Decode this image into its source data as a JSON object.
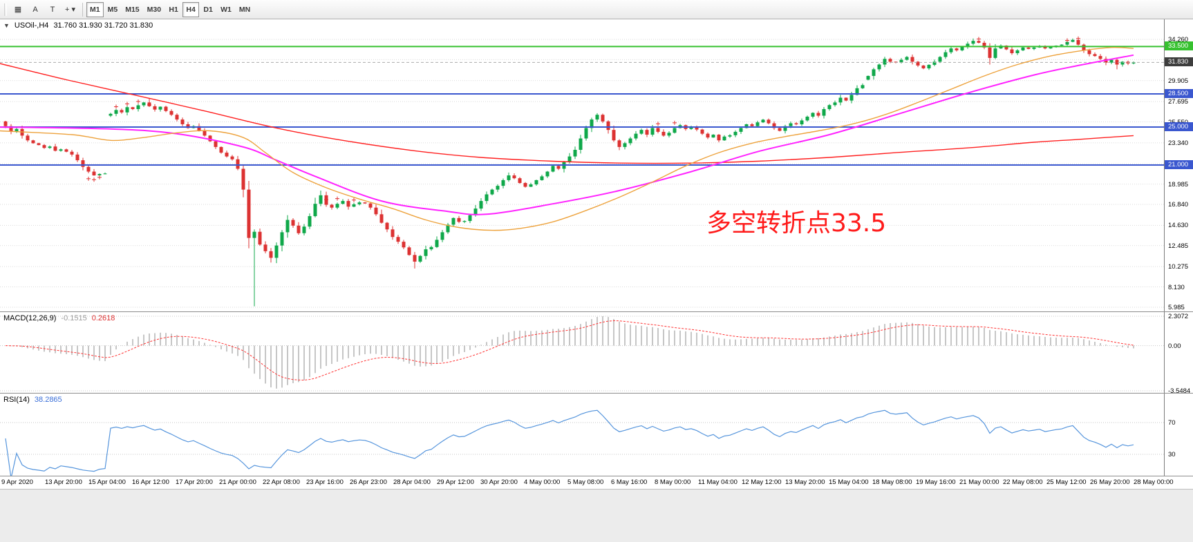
{
  "toolbar": {
    "tools": [
      {
        "name": "chart-grid",
        "glyph": "▦"
      },
      {
        "name": "arrow-tool",
        "glyph": "A"
      },
      {
        "name": "text-tool",
        "glyph": "T"
      },
      {
        "name": "cursor-dropdown",
        "glyph": "+",
        "caret": "▾"
      }
    ],
    "timeframes": [
      "M1",
      "M5",
      "M15",
      "M30",
      "H1",
      "H4",
      "D1",
      "W1",
      "MN"
    ],
    "pressed": [
      "M1",
      "H4"
    ]
  },
  "main_panel": {
    "dropdown_glyph": "▼",
    "title": "USOil-,H4",
    "ohlc": "31.760 31.930 31.720 31.830",
    "annotation": {
      "text": "多空转折点33.5",
      "color": "#ff1a1a"
    }
  },
  "macd_panel": {
    "label": "MACD(12,26,9)",
    "value_main": "-0.1515",
    "value_signal": "0.2618"
  },
  "rsi_panel": {
    "label": "RSI(14)",
    "value": "38.2865"
  },
  "chart_data": {
    "type": "candlestick",
    "symbol": "USOil-",
    "timeframe": "H4",
    "ohlc_current": {
      "open": 31.76,
      "high": 31.93,
      "low": 31.72,
      "close": 31.83
    },
    "x_axis": {
      "labels": [
        "9 Apr 2020",
        "13 Apr 20:00",
        "15 Apr 04:00",
        "16 Apr 12:00",
        "17 Apr 20:00",
        "21 Apr 00:00",
        "22 Apr 08:00",
        "23 Apr 16:00",
        "26 Apr 23:00",
        "28 Apr 04:00",
        "29 Apr 12:00",
        "30 Apr 20:00",
        "4 May 00:00",
        "5 May 08:00",
        "6 May 16:00",
        "8 May 00:00",
        "11 May 04:00",
        "12 May 12:00",
        "13 May 20:00",
        "15 May 04:00",
        "18 May 08:00",
        "19 May 16:00",
        "21 May 00:00",
        "22 May 08:00",
        "25 May 12:00",
        "26 May 20:00",
        "28 May 00:00"
      ]
    },
    "y_axis": {
      "tick_labels": [
        "34.260",
        "29.905",
        "27.695",
        "25.550",
        "23.340",
        "18.985",
        "16.840",
        "14.630",
        "12.485",
        "10.275",
        "8.130",
        "5.985"
      ],
      "grid_values": [
        34.26,
        32.115,
        29.905,
        27.695,
        25.55,
        23.34,
        21.13,
        18.985,
        16.84,
        14.63,
        12.485,
        10.275,
        8.13,
        5.985
      ],
      "range": [
        5.985,
        34.26
      ]
    },
    "badges": [
      {
        "text": "33.500",
        "value": 33.5,
        "type": "green"
      },
      {
        "text": "31.830",
        "value": 31.83,
        "type": "price"
      },
      {
        "text": "28.500",
        "value": 28.5,
        "type": "blue"
      },
      {
        "text": "25.000",
        "value": 25.0,
        "type": "blue"
      },
      {
        "text": "21.000",
        "value": 21.0,
        "type": "blue"
      }
    ],
    "closes": [
      25.1,
      24.55,
      24.8,
      24.1,
      23.6,
      23.3,
      23.1,
      22.8,
      22.95,
      22.5,
      22.65,
      22.4,
      22.1,
      21.5,
      20.8,
      20.3,
      19.9,
      20.05,
      20.1,
      26.4,
      26.8,
      26.55,
      27.1,
      26.9,
      27.3,
      27.6,
      27.2,
      26.85,
      27.15,
      26.7,
      26.3,
      25.8,
      25.3,
      24.9,
      25.1,
      24.6,
      24.1,
      23.5,
      22.9,
      22.3,
      21.9,
      21.6,
      20.6,
      18.4,
      13.3,
      13.95,
      12.6,
      11.9,
      11.2,
      12.5,
      13.9,
      15.2,
      14.6,
      13.8,
      14.5,
      15.6,
      16.9,
      17.8,
      16.8,
      16.5,
      16.9,
      17.2,
      16.6,
      16.85,
      17.05,
      16.94,
      16.5,
      15.8,
      14.9,
      14.2,
      13.4,
      12.9,
      12.3,
      11.5,
      10.8,
      11.4,
      12.1,
      12.34,
      13.1,
      13.9,
      14.7,
      15.4,
      15.0,
      15.09,
      15.7,
      16.4,
      17.2,
      17.9,
      18.4,
      18.8,
      19.4,
      19.9,
      19.6,
      19.1,
      18.7,
      18.95,
      19.4,
      19.8,
      20.3,
      20.9,
      20.6,
      21.3,
      21.9,
      22.6,
      23.8,
      24.9,
      25.8,
      26.3,
      25.6,
      24.7,
      23.6,
      22.9,
      23.3,
      23.8,
      24.3,
      24.7,
      24.2,
      24.9,
      24.5,
      24.1,
      24.4,
      24.9,
      25.2,
      24.8,
      25.0,
      24.74,
      24.3,
      23.9,
      24.2,
      23.6,
      24.0,
      24.14,
      24.5,
      24.9,
      25.3,
      25.1,
      25.5,
      25.78,
      25.4,
      24.9,
      24.6,
      25.1,
      25.4,
      25.29,
      25.7,
      26.1,
      26.5,
      26.2,
      26.9,
      27.32,
      27.6,
      28.1,
      27.8,
      28.4,
      29.1,
      29.43,
      30.4,
      31.1,
      31.6,
      32.2,
      31.9,
      31.82,
      32.1,
      32.4,
      31.9,
      31.5,
      31.2,
      31.57,
      31.9,
      32.4,
      32.9,
      33.3,
      33.1,
      33.49,
      33.8,
      34.1,
      33.9,
      33.4,
      32.3,
      33.3,
      33.6,
      33.2,
      32.8,
      33.1,
      33.4,
      33.25,
      33.4,
      33.55,
      33.3,
      33.45,
      33.6,
      33.7,
      34.0,
      34.2,
      33.7,
      33.1,
      32.7,
      32.5,
      32.2,
      31.8,
      32.1,
      31.6,
      31.9,
      31.72,
      31.83
    ],
    "overrides": {
      "0": {
        "open": 25.6
      },
      "19": {
        "open": 26.2
      },
      "26": {
        "high": 28.03
      },
      "45": {
        "low": 6.08,
        "high": 14.2
      },
      "48": {
        "low": 10.7
      },
      "57": {
        "high": 18.3
      },
      "74": {
        "low": 10.07
      },
      "156": {
        "open": 30.0
      },
      "175": {
        "high": 34.35
      },
      "178": {
        "low": 31.6
      },
      "193": {
        "high": 34.35
      },
      "201": {
        "low": 31.1
      }
    },
    "hlines": [
      {
        "value": 33.5,
        "color": "#36c12f",
        "width": 2,
        "name": "resistance-33.5"
      },
      {
        "value": 28.5,
        "color": "#3a57cf",
        "width": 2,
        "name": "level-28.5"
      },
      {
        "value": 25.0,
        "color": "#3a57cf",
        "width": 2,
        "name": "level-25.0"
      },
      {
        "value": 21.0,
        "color": "#3a57cf",
        "width": 2,
        "name": "level-21.0"
      }
    ],
    "bid_line": 31.83,
    "ma_lines": [
      {
        "name": "ma-slow-red",
        "color": "#ff1f1f",
        "width": 1.4,
        "points": [
          [
            0,
            31.7
          ],
          [
            11,
            30.0
          ],
          [
            24,
            28.3
          ],
          [
            36,
            26.7
          ],
          [
            49,
            24.9
          ],
          [
            61,
            23.6
          ],
          [
            74,
            22.5
          ],
          [
            86,
            21.8
          ],
          [
            99,
            21.4
          ],
          [
            111,
            21.2
          ],
          [
            124,
            21.2
          ],
          [
            136,
            21.4
          ],
          [
            149,
            21.8
          ],
          [
            161,
            22.3
          ],
          [
            174,
            22.8
          ],
          [
            186,
            23.4
          ],
          [
            194,
            23.7
          ],
          [
            204,
            24.1
          ]
        ]
      },
      {
        "name": "ma-mid-magenta",
        "color": "#ff22ff",
        "width": 2,
        "points": [
          [
            0,
            25.0
          ],
          [
            19,
            24.8
          ],
          [
            31,
            24.3
          ],
          [
            43,
            22.9
          ],
          [
            49,
            21.5
          ],
          [
            56,
            19.8
          ],
          [
            68,
            17.2
          ],
          [
            80,
            16.1
          ],
          [
            87,
            15.8
          ],
          [
            99,
            16.9
          ],
          [
            111,
            18.3
          ],
          [
            124,
            20.3
          ],
          [
            136,
            22.4
          ],
          [
            149,
            24.2
          ],
          [
            161,
            26.3
          ],
          [
            174,
            28.6
          ],
          [
            186,
            30.5
          ],
          [
            194,
            31.5
          ],
          [
            204,
            32.6
          ]
        ]
      },
      {
        "name": "ma-fast-orange",
        "color": "#eda23c",
        "width": 1.4,
        "points": [
          [
            0,
            24.6
          ],
          [
            12,
            24.2
          ],
          [
            19,
            23.6
          ],
          [
            25,
            23.9
          ],
          [
            31,
            24.4
          ],
          [
            37,
            24.6
          ],
          [
            43,
            23.9
          ],
          [
            47,
            22.3
          ],
          [
            52,
            20.2
          ],
          [
            58,
            18.6
          ],
          [
            64,
            17.4
          ],
          [
            70,
            16.4
          ],
          [
            76,
            15.2
          ],
          [
            82,
            14.4
          ],
          [
            88,
            14.1
          ],
          [
            93,
            14.3
          ],
          [
            99,
            15.0
          ],
          [
            105,
            16.2
          ],
          [
            111,
            17.6
          ],
          [
            117,
            19.2
          ],
          [
            123,
            20.9
          ],
          [
            129,
            22.3
          ],
          [
            135,
            23.3
          ],
          [
            141,
            24.0
          ],
          [
            147,
            24.6
          ],
          [
            153,
            25.3
          ],
          [
            159,
            26.3
          ],
          [
            165,
            27.6
          ],
          [
            171,
            29.0
          ],
          [
            177,
            30.4
          ],
          [
            183,
            31.6
          ],
          [
            189,
            32.5
          ],
          [
            195,
            33.1
          ],
          [
            200,
            33.4
          ],
          [
            204,
            33.3
          ]
        ]
      }
    ],
    "markers": [
      [
        15,
        19.55
      ],
      [
        16,
        19.45
      ],
      [
        17,
        19.7
      ],
      [
        20,
        27.15
      ],
      [
        22,
        27.45
      ],
      [
        24,
        27.7
      ],
      [
        26,
        27.35
      ],
      [
        58,
        17.35
      ],
      [
        60,
        17.45
      ],
      [
        63,
        17.3
      ],
      [
        118,
        25.35
      ],
      [
        121,
        25.45
      ],
      [
        176,
        34.3
      ],
      [
        192,
        34.15
      ],
      [
        194,
        34.35
      ]
    ],
    "macd": {
      "fast": 12,
      "slow": 26,
      "signal": 9,
      "value": -0.1515,
      "signal_value": 0.2618,
      "axis": [
        {
          "text": "2.3072",
          "value": 2.3072
        },
        {
          "text": "0.00",
          "value": 0
        },
        {
          "text": "-3.5484",
          "value": -3.5484
        }
      ]
    },
    "rsi": {
      "period": 14,
      "value": 38.2865,
      "levels": [
        {
          "text": "70",
          "value": 70
        },
        {
          "text": "30",
          "value": 30
        }
      ]
    },
    "colors": {
      "up": "#0fa84a",
      "down": "#dc3232",
      "macd_hist": "#b8b8b8",
      "macd_signal": "#ff3333",
      "rsi": "#5494dc",
      "grid": "#dadada"
    }
  }
}
